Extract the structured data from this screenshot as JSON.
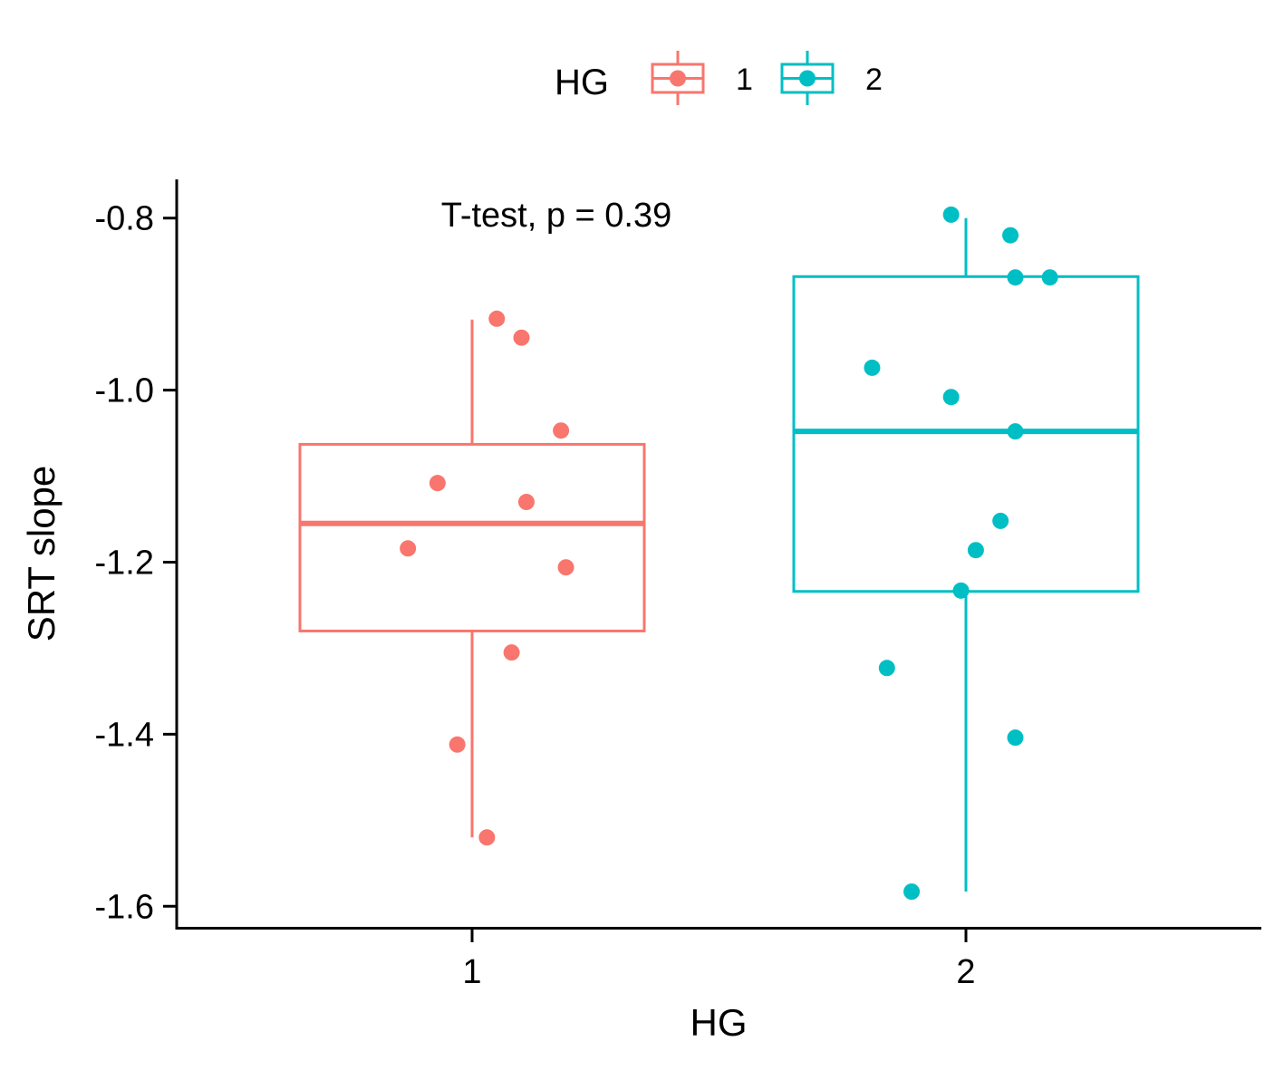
{
  "chart_data": {
    "type": "boxplot",
    "xlabel": "HG",
    "ylabel": "SRT slope",
    "annotation": "T-test, p = 0.39",
    "ylim": [
      -1.625,
      -0.755
    ],
    "y_ticks": [
      -1.6,
      -1.4,
      -1.2,
      -1.0,
      -0.8
    ],
    "y_tick_labels": [
      "-1.6",
      "-1.4",
      "-1.2",
      "-1.0",
      "-0.8"
    ],
    "legend": {
      "title": "HG",
      "position": "top",
      "entries": [
        {
          "label": "1",
          "color": "#F8766D"
        },
        {
          "label": "2",
          "color": "#00BFC4"
        }
      ]
    },
    "groups": [
      {
        "category": "1",
        "color": "#F8766D",
        "whisker_low": -1.52,
        "q1": -1.28,
        "median": -1.155,
        "q3": -1.063,
        "whisker_high": -0.918,
        "points": [
          {
            "x_offset": 0.05,
            "y": -0.917
          },
          {
            "x_offset": 0.1,
            "y": -0.939
          },
          {
            "x_offset": 0.18,
            "y": -1.047
          },
          {
            "x_offset": -0.07,
            "y": -1.108
          },
          {
            "x_offset": 0.11,
            "y": -1.13
          },
          {
            "x_offset": -0.13,
            "y": -1.184
          },
          {
            "x_offset": 0.19,
            "y": -1.206
          },
          {
            "x_offset": 0.08,
            "y": -1.305
          },
          {
            "x_offset": -0.03,
            "y": -1.412
          },
          {
            "x_offset": 0.03,
            "y": -1.52
          }
        ]
      },
      {
        "category": "2",
        "color": "#00BFC4",
        "whisker_low": -1.583,
        "q1": -1.234,
        "median": -1.048,
        "q3": -0.868,
        "whisker_high": -0.8,
        "points": [
          {
            "x_offset": -0.03,
            "y": -0.796
          },
          {
            "x_offset": 0.09,
            "y": -0.82
          },
          {
            "x_offset": 0.1,
            "y": -0.869
          },
          {
            "x_offset": 0.17,
            "y": -0.869
          },
          {
            "x_offset": -0.19,
            "y": -0.974
          },
          {
            "x_offset": -0.03,
            "y": -1.008
          },
          {
            "x_offset": 0.1,
            "y": -1.048
          },
          {
            "x_offset": 0.07,
            "y": -1.152
          },
          {
            "x_offset": 0.02,
            "y": -1.186
          },
          {
            "x_offset": -0.01,
            "y": -1.233
          },
          {
            "x_offset": -0.16,
            "y": -1.323
          },
          {
            "x_offset": 0.1,
            "y": -1.404
          },
          {
            "x_offset": -0.11,
            "y": -1.583
          }
        ]
      }
    ]
  }
}
